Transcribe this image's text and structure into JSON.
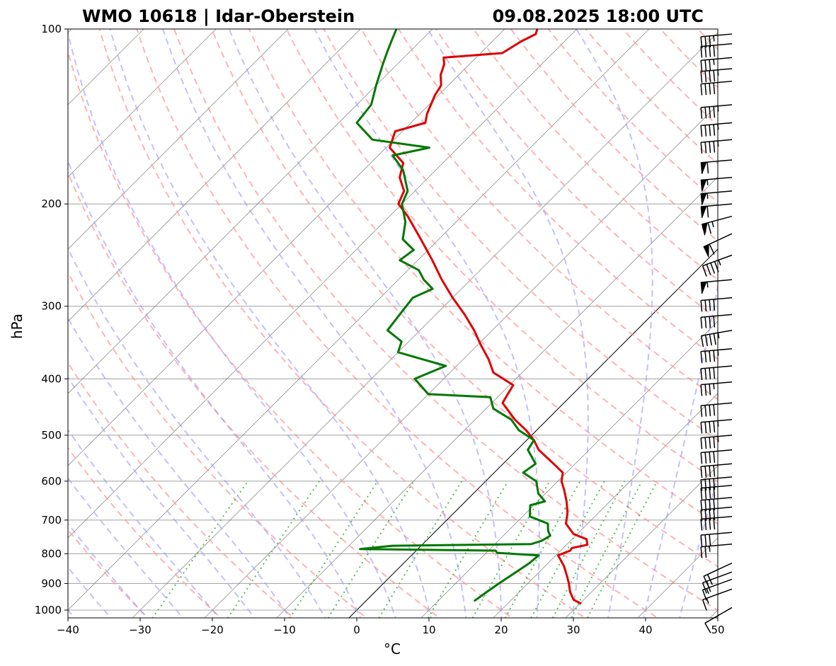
{
  "header": {
    "title_left": "WMO 10618 | Idar-Oberstein",
    "title_right": "09.08.2025 18:00 UTC"
  },
  "chart_data": {
    "type": "skew-t",
    "xlabel": "°C",
    "ylabel": "hPa",
    "xlim": [
      -40,
      50
    ],
    "ylim": [
      1020,
      100
    ],
    "x_ticks": [
      "−40",
      "−30",
      "−20",
      "−10",
      "0",
      "10",
      "20",
      "30",
      "40",
      "50"
    ],
    "x_tick_values": [
      -40,
      -30,
      -20,
      -10,
      0,
      10,
      20,
      30,
      40,
      50
    ],
    "y_ticks": [
      "1000",
      "900",
      "800",
      "700",
      "600",
      "500",
      "400",
      "300",
      "200",
      "100"
    ],
    "y_tick_values": [
      1000,
      900,
      800,
      700,
      600,
      500,
      400,
      300,
      200,
      100
    ],
    "grid": true,
    "colors": {
      "temperature": "#dd0000",
      "dewpoint": "#007700",
      "dry_adiabats": "#ff9999",
      "moist_adiabats": "#9999ee",
      "mixing_ratio": "#33aa33",
      "isotherms": "#777777",
      "isobars": "#aaaaaa",
      "zero_isotherm": "#000000",
      "barbs": "#000000"
    },
    "temperature": [
      {
        "p": 975,
        "t": 30.2
      },
      {
        "p": 960,
        "t": 28.6
      },
      {
        "p": 930,
        "t": 27.0
      },
      {
        "p": 900,
        "t": 25.7
      },
      {
        "p": 870,
        "t": 24.2
      },
      {
        "p": 840,
        "t": 22.6
      },
      {
        "p": 805,
        "t": 20.3
      },
      {
        "p": 790,
        "t": 21.3
      },
      {
        "p": 782,
        "t": 21.2
      },
      {
        "p": 772,
        "t": 22.9
      },
      {
        "p": 755,
        "t": 22.0
      },
      {
        "p": 740,
        "t": 19.5
      },
      {
        "p": 710,
        "t": 17.0
      },
      {
        "p": 680,
        "t": 15.7
      },
      {
        "p": 650,
        "t": 14.0
      },
      {
        "p": 620,
        "t": 12.0
      },
      {
        "p": 600,
        "t": 10.5
      },
      {
        "p": 580,
        "t": 9.5
      },
      {
        "p": 560,
        "t": 7.0
      },
      {
        "p": 530,
        "t": 3.0
      },
      {
        "p": 510,
        "t": 1.0
      },
      {
        "p": 490,
        "t": -1.5
      },
      {
        "p": 470,
        "t": -4.5
      },
      {
        "p": 440,
        "t": -8.5
      },
      {
        "p": 425,
        "t": -9.0
      },
      {
        "p": 410,
        "t": -9.5
      },
      {
        "p": 390,
        "t": -14.0
      },
      {
        "p": 370,
        "t": -16.5
      },
      {
        "p": 350,
        "t": -19.5
      },
      {
        "p": 330,
        "t": -22.5
      },
      {
        "p": 310,
        "t": -26.0
      },
      {
        "p": 290,
        "t": -30.0
      },
      {
        "p": 270,
        "t": -34.0
      },
      {
        "p": 250,
        "t": -38.0
      },
      {
        "p": 230,
        "t": -42.5
      },
      {
        "p": 210,
        "t": -47.5
      },
      {
        "p": 200,
        "t": -50.5
      },
      {
        "p": 190,
        "t": -51.5
      },
      {
        "p": 180,
        "t": -54.0
      },
      {
        "p": 170,
        "t": -55.5
      },
      {
        "p": 160,
        "t": -59.5
      },
      {
        "p": 150,
        "t": -61.0
      },
      {
        "p": 145,
        "t": -58.0
      },
      {
        "p": 140,
        "t": -59.0
      },
      {
        "p": 130,
        "t": -60.5
      },
      {
        "p": 125,
        "t": -61.0
      },
      {
        "p": 120,
        "t": -62.5
      },
      {
        "p": 115,
        "t": -63.5
      },
      {
        "p": 112,
        "t": -64.5
      },
      {
        "p": 110,
        "t": -57.0
      },
      {
        "p": 105,
        "t": -56.0
      },
      {
        "p": 102,
        "t": -55.0
      },
      {
        "p": 100,
        "t": -55.5
      }
    ],
    "dewpoint": [
      {
        "p": 965,
        "t": 15.0
      },
      {
        "p": 930,
        "t": 15.5
      },
      {
        "p": 900,
        "t": 16.0
      },
      {
        "p": 860,
        "t": 16.8
      },
      {
        "p": 830,
        "t": 17.4
      },
      {
        "p": 805,
        "t": 17.6
      },
      {
        "p": 797,
        "t": 11.5
      },
      {
        "p": 790,
        "t": 11.0
      },
      {
        "p": 785,
        "t": -8.0
      },
      {
        "p": 775,
        "t": -4.0
      },
      {
        "p": 770,
        "t": 15.0
      },
      {
        "p": 760,
        "t": 16.0
      },
      {
        "p": 745,
        "t": 16.5
      },
      {
        "p": 730,
        "t": 15.5
      },
      {
        "p": 710,
        "t": 14.5
      },
      {
        "p": 690,
        "t": 11.0
      },
      {
        "p": 670,
        "t": 10.0
      },
      {
        "p": 660,
        "t": 9.5
      },
      {
        "p": 650,
        "t": 11.0
      },
      {
        "p": 630,
        "t": 9.0
      },
      {
        "p": 600,
        "t": 7.0
      },
      {
        "p": 580,
        "t": 4.0
      },
      {
        "p": 560,
        "t": 4.5
      },
      {
        "p": 530,
        "t": 1.5
      },
      {
        "p": 510,
        "t": 1.0
      },
      {
        "p": 490,
        "t": -2.5
      },
      {
        "p": 470,
        "t": -5.0
      },
      {
        "p": 450,
        "t": -9.0
      },
      {
        "p": 430,
        "t": -11.0
      },
      {
        "p": 425,
        "t": -20.0
      },
      {
        "p": 400,
        "t": -24.0
      },
      {
        "p": 380,
        "t": -21.5
      },
      {
        "p": 360,
        "t": -30.0
      },
      {
        "p": 345,
        "t": -31.0
      },
      {
        "p": 330,
        "t": -34.5
      },
      {
        "p": 310,
        "t": -35.0
      },
      {
        "p": 290,
        "t": -35.5
      },
      {
        "p": 280,
        "t": -34.0
      },
      {
        "p": 270,
        "t": -36.5
      },
      {
        "p": 260,
        "t": -38.5
      },
      {
        "p": 250,
        "t": -42.5
      },
      {
        "p": 240,
        "t": -42.0
      },
      {
        "p": 230,
        "t": -45.0
      },
      {
        "p": 215,
        "t": -47.0
      },
      {
        "p": 200,
        "t": -50.0
      },
      {
        "p": 190,
        "t": -51.0
      },
      {
        "p": 175,
        "t": -54.5
      },
      {
        "p": 165,
        "t": -58.0
      },
      {
        "p": 160,
        "t": -54.0
      },
      {
        "p": 155,
        "t": -63.0
      },
      {
        "p": 145,
        "t": -67.5
      },
      {
        "p": 135,
        "t": -68.0
      },
      {
        "p": 125,
        "t": -70.0
      },
      {
        "p": 115,
        "t": -72.0
      },
      {
        "p": 110,
        "t": -73.0
      },
      {
        "p": 105,
        "t": -74.0
      },
      {
        "p": 100,
        "t": -75.0
      }
    ],
    "wind_barbs": [
      {
        "p": 990,
        "speed_kt": 10,
        "dir_deg": 240
      },
      {
        "p": 920,
        "speed_kt": 15,
        "dir_deg": 250
      },
      {
        "p": 885,
        "speed_kt": 15,
        "dir_deg": 250
      },
      {
        "p": 860,
        "speed_kt": 20,
        "dir_deg": 250
      },
      {
        "p": 830,
        "speed_kt": 20,
        "dir_deg": 245
      },
      {
        "p": 770,
        "speed_kt": 25,
        "dir_deg": 265
      },
      {
        "p": 735,
        "speed_kt": 30,
        "dir_deg": 265
      },
      {
        "p": 690,
        "speed_kt": 40,
        "dir_deg": 265
      },
      {
        "p": 665,
        "speed_kt": 40,
        "dir_deg": 265
      },
      {
        "p": 640,
        "speed_kt": 40,
        "dir_deg": 265
      },
      {
        "p": 610,
        "speed_kt": 40,
        "dir_deg": 265
      },
      {
        "p": 590,
        "speed_kt": 40,
        "dir_deg": 265
      },
      {
        "p": 560,
        "speed_kt": 40,
        "dir_deg": 265
      },
      {
        "p": 530,
        "speed_kt": 40,
        "dir_deg": 265
      },
      {
        "p": 500,
        "speed_kt": 45,
        "dir_deg": 265
      },
      {
        "p": 470,
        "speed_kt": 45,
        "dir_deg": 265
      },
      {
        "p": 440,
        "speed_kt": 40,
        "dir_deg": 265
      },
      {
        "p": 405,
        "speed_kt": 35,
        "dir_deg": 265
      },
      {
        "p": 380,
        "speed_kt": 40,
        "dir_deg": 265
      },
      {
        "p": 355,
        "speed_kt": 45,
        "dir_deg": 265
      },
      {
        "p": 330,
        "speed_kt": 45,
        "dir_deg": 260
      },
      {
        "p": 310,
        "speed_kt": 40,
        "dir_deg": 265
      },
      {
        "p": 290,
        "speed_kt": 40,
        "dir_deg": 265
      },
      {
        "p": 270,
        "speed_kt": 55,
        "dir_deg": 265
      },
      {
        "p": 245,
        "speed_kt": 45,
        "dir_deg": 250
      },
      {
        "p": 225,
        "speed_kt": 60,
        "dir_deg": 245
      },
      {
        "p": 210,
        "speed_kt": 65,
        "dir_deg": 255
      },
      {
        "p": 200,
        "speed_kt": 60,
        "dir_deg": 265
      },
      {
        "p": 190,
        "speed_kt": 55,
        "dir_deg": 265
      },
      {
        "p": 180,
        "speed_kt": 55,
        "dir_deg": 265
      },
      {
        "p": 168,
        "speed_kt": 60,
        "dir_deg": 265
      },
      {
        "p": 155,
        "speed_kt": 45,
        "dir_deg": 265
      },
      {
        "p": 145,
        "speed_kt": 45,
        "dir_deg": 265
      },
      {
        "p": 135,
        "speed_kt": 45,
        "dir_deg": 265
      },
      {
        "p": 123,
        "speed_kt": 40,
        "dir_deg": 265
      },
      {
        "p": 117,
        "speed_kt": 45,
        "dir_deg": 265
      },
      {
        "p": 112,
        "speed_kt": 35,
        "dir_deg": 265
      },
      {
        "p": 106,
        "speed_kt": 40,
        "dir_deg": 265
      },
      {
        "p": 102,
        "speed_kt": 35,
        "dir_deg": 265
      }
    ]
  }
}
